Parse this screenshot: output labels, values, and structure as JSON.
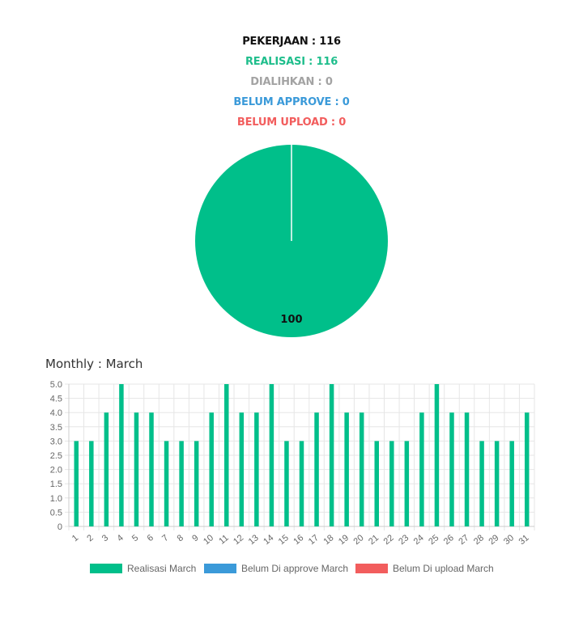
{
  "summary": {
    "pekerjaan": "PEKERJAAN : 116",
    "realisasi": "REALISASI : 116",
    "dialihkan": "DIALIHKAN : 0",
    "belum_approve": "BELUM APPROVE : 0",
    "belum_upload": "BELUM UPLOAD : 0"
  },
  "colors": {
    "pekerjaan": "#111111",
    "realisasi": "#1fbe8c",
    "dialihkan": "#a3a3a3",
    "belum_approve": "#3b9ad9",
    "belum_upload": "#f25d5d",
    "grid": "#e6e6e6",
    "axis_text": "#666666"
  },
  "monthly": {
    "title": "Monthly : March"
  },
  "chart_data": [
    {
      "type": "pie",
      "slices": [
        {
          "value": 100,
          "color": "#00bf8a",
          "label": "100"
        },
        {
          "value": 0,
          "color": "#3b9ad9",
          "label": ""
        },
        {
          "value": 0,
          "color": "#f25d5d",
          "label": ""
        }
      ]
    },
    {
      "type": "bar",
      "title": "Monthly : March",
      "categories": [
        "1",
        "2",
        "3",
        "4",
        "5",
        "6",
        "7",
        "8",
        "9",
        "10",
        "11",
        "12",
        "13",
        "14",
        "15",
        "16",
        "17",
        "18",
        "19",
        "20",
        "21",
        "22",
        "23",
        "24",
        "25",
        "26",
        "27",
        "28",
        "29",
        "30",
        "31"
      ],
      "series": [
        {
          "name": "Realisasi March",
          "color": "#00bf8a",
          "values": [
            3,
            3,
            4,
            5,
            4,
            4,
            3,
            3,
            3,
            4,
            5,
            4,
            4,
            5,
            3,
            3,
            4,
            5,
            4,
            4,
            3,
            3,
            3,
            4,
            5,
            4,
            4,
            3,
            3,
            3,
            4
          ]
        },
        {
          "name": "Belum Di approve March",
          "color": "#3b9ad9",
          "values": [
            0,
            0,
            0,
            0,
            0,
            0,
            0,
            0,
            0,
            0,
            0,
            0,
            0,
            0,
            0,
            0,
            0,
            0,
            0,
            0,
            0,
            0,
            0,
            0,
            0,
            0,
            0,
            0,
            0,
            0,
            0
          ]
        },
        {
          "name": "Belum Di upload March",
          "color": "#f25d5d",
          "values": [
            0,
            0,
            0,
            0,
            0,
            0,
            0,
            0,
            0,
            0,
            0,
            0,
            0,
            0,
            0,
            0,
            0,
            0,
            0,
            0,
            0,
            0,
            0,
            0,
            0,
            0,
            0,
            0,
            0,
            0,
            0
          ]
        }
      ],
      "ylim": [
        0,
        5
      ],
      "yticks": [
        "0",
        "0.5",
        "1.0",
        "1.5",
        "2.0",
        "2.5",
        "3.0",
        "3.5",
        "4.0",
        "4.5",
        "5.0"
      ],
      "grid": true,
      "legend_position": "bottom"
    }
  ]
}
